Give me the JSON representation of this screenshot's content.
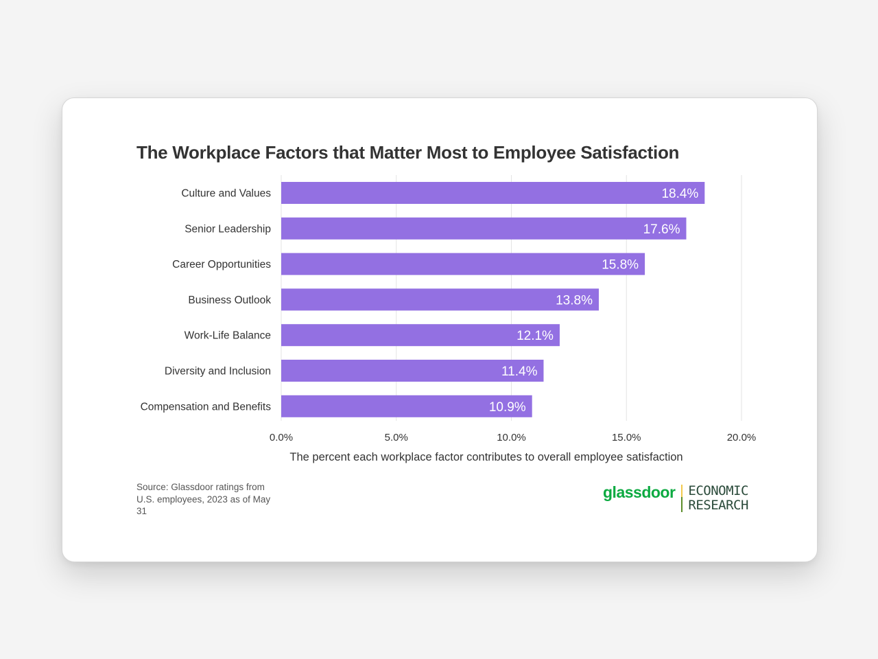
{
  "colors": {
    "bar": "#9370e2",
    "grid": "#e3e3e3",
    "brand_green": "#0caa41"
  },
  "chart_data": {
    "type": "bar",
    "orientation": "horizontal",
    "title": "The Workplace Factors that Matter Most to Employee Satisfaction",
    "xlabel": "The percent each workplace factor contributes to overall employee satisfaction",
    "ylabel": "",
    "categories": [
      "Culture and Values",
      "Senior Leadership",
      "Career Opportunities",
      "Business Outlook",
      "Work-Life Balance",
      "Diversity and Inclusion",
      "Compensation and Benefits"
    ],
    "values": [
      18.4,
      17.6,
      15.8,
      13.8,
      12.1,
      11.4,
      10.9
    ],
    "value_labels": [
      "18.4%",
      "17.6%",
      "15.8%",
      "13.8%",
      "12.1%",
      "11.4%",
      "10.9%"
    ],
    "xlim": [
      0,
      20
    ],
    "ticks": [
      0,
      5,
      10,
      15,
      20
    ],
    "tick_labels": [
      "0.0%",
      "5.0%",
      "10.0%",
      "15.0%",
      "20.0%"
    ],
    "grid": "vertical",
    "legend": "none"
  },
  "footer": {
    "source": "Source: Glassdoor ratings from U.S. employees, 2023 as of May 31"
  },
  "logo": {
    "wordmark": "glassdoor",
    "line1": "ECONOMIC",
    "line2": "RESEARCH"
  }
}
